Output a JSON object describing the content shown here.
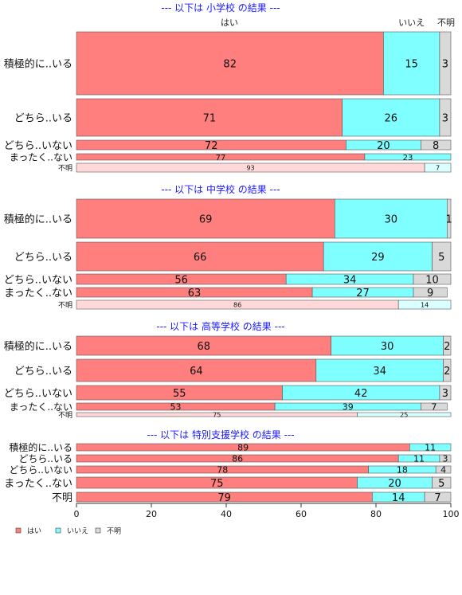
{
  "chart_data": {
    "type": "bar",
    "orientation": "horizontal",
    "stacked": true,
    "xlim": [
      0,
      100
    ],
    "xticks": [
      "0",
      "20",
      "40",
      "60",
      "80",
      "100"
    ],
    "legend_position": "bottom-left",
    "header_labels": [
      "はい",
      "いいえ",
      "不明"
    ],
    "series": [
      {
        "name": "はい",
        "color": "#FF7F7F"
      },
      {
        "name": "いいえ",
        "color": "#7FFFFF"
      },
      {
        "name": "不明",
        "color": "#D9D9D9"
      }
    ],
    "panels": [
      {
        "title": "--- 以下は 小学校 の結果 ---",
        "rows": [
          {
            "label": "積極的に..いる",
            "values": [
              82,
              15,
              3
            ]
          },
          {
            "label": "どちら..いる",
            "values": [
              71,
              26,
              3
            ]
          },
          {
            "label": "どちら..いない",
            "values": [
              72,
              20,
              8
            ]
          },
          {
            "label": "まったく..ない",
            "values": [
              77,
              23,
              0
            ]
          },
          {
            "label": "不明",
            "values": [
              93,
              7,
              0
            ]
          }
        ]
      },
      {
        "title": "--- 以下は 中学校 の結果 ---",
        "rows": [
          {
            "label": "積極的に..いる",
            "values": [
              69,
              30,
              1
            ]
          },
          {
            "label": "どちら..いる",
            "values": [
              66,
              29,
              5
            ]
          },
          {
            "label": "どちら..いない",
            "values": [
              56,
              34,
              10
            ]
          },
          {
            "label": "まったく..ない",
            "values": [
              63,
              27,
              9
            ]
          },
          {
            "label": "不明",
            "values": [
              86,
              14,
              0
            ]
          }
        ]
      },
      {
        "title": "--- 以下は 高等学校 の結果 ---",
        "rows": [
          {
            "label": "積極的に..いる",
            "values": [
              68,
              30,
              2
            ]
          },
          {
            "label": "どちら..いる",
            "values": [
              64,
              34,
              2
            ]
          },
          {
            "label": "どちら..いない",
            "values": [
              55,
              42,
              3
            ]
          },
          {
            "label": "まったく..ない",
            "values": [
              53,
              39,
              7
            ]
          },
          {
            "label": "不明",
            "values": [
              75,
              25,
              0
            ]
          }
        ]
      },
      {
        "title": "--- 以下は 特別支援学校 の結果 ---",
        "rows": [
          {
            "label": "積極的に..いる",
            "values": [
              89,
              11,
              0
            ]
          },
          {
            "label": "どちら..いる",
            "values": [
              86,
              11,
              3
            ]
          },
          {
            "label": "どちら..いない",
            "values": [
              78,
              18,
              4
            ]
          },
          {
            "label": "まったく..ない",
            "values": [
              75,
              20,
              5
            ]
          },
          {
            "label": "不明",
            "values": [
              79,
              14,
              7
            ]
          }
        ]
      }
    ]
  }
}
